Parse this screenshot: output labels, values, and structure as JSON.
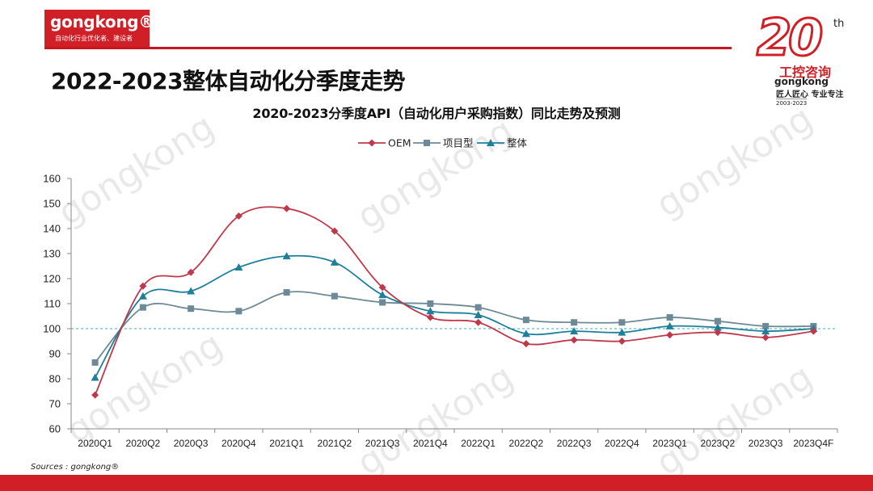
{
  "header": {
    "logo_text": "gongkong®",
    "logo_tagline": "自动化行业优化者、建设者",
    "title": "2022-2023整体自动化分季度走势"
  },
  "badge": {
    "number": "20",
    "suffix": "th",
    "name_cn": "工控咨询",
    "name_en": "gongkong",
    "slogan": "匠人匠心 专业专注",
    "years": "2003-2023"
  },
  "watermark": "gongkong",
  "footer": {
    "source": "Sources : gongkong®"
  },
  "chart_data": {
    "type": "line",
    "title": "2020-2023分季度API（自动化用户采购指数）同比走势及预测",
    "categories": [
      "2020Q1",
      "2020Q2",
      "2020Q3",
      "2020Q4",
      "2021Q1",
      "2021Q2",
      "2021Q3",
      "2021Q4",
      "2022Q1",
      "2022Q2",
      "2022Q3",
      "2022Q4",
      "2023Q1",
      "2023Q2",
      "2023Q3",
      "2023Q4F"
    ],
    "ylim": [
      60,
      160
    ],
    "yticks": [
      60,
      70,
      80,
      90,
      100,
      110,
      120,
      130,
      140,
      150,
      160
    ],
    "reference_line": 100,
    "legend_position": "top-center",
    "series": [
      {
        "name": "OEM",
        "color": "#c0394b",
        "marker": "diamond",
        "values": [
          73.5,
          117,
          122.5,
          145,
          148,
          139,
          116.5,
          104.5,
          102.5,
          94,
          95.5,
          95,
          97.5,
          98.5,
          96.5,
          99
        ]
      },
      {
        "name": "项目型",
        "color": "#6e8a96",
        "marker": "square",
        "values": [
          86.5,
          108.5,
          108,
          107,
          114.5,
          113,
          110.5,
          110,
          108.5,
          103.5,
          102.5,
          102.5,
          104.5,
          103,
          101,
          101
        ]
      },
      {
        "name": "整体",
        "color": "#1e7f9a",
        "marker": "triangle",
        "values": [
          80.5,
          113,
          115,
          124.5,
          129,
          126.5,
          113.5,
          107,
          105.5,
          98,
          99,
          98.5,
          101,
          100.5,
          99,
          100
        ]
      }
    ]
  }
}
